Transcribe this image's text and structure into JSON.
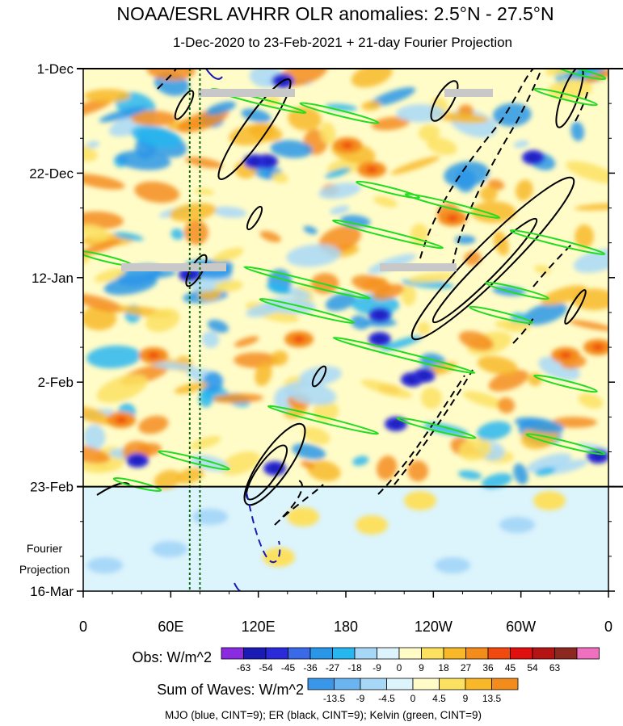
{
  "chart_data": {
    "type": "heatmap",
    "title": "NOAA/ESRL AVHRR OLR anomalies: 2.5°N - 27.5°N",
    "subtitle": "1-Dec-2020 to 23-Feb-2021 + 21-day Fourier Projection",
    "y_ticks": [
      "1-Dec",
      "22-Dec",
      "12-Jan",
      "2-Feb",
      "23-Feb",
      "16-Mar"
    ],
    "y_tick_days": [
      0,
      21,
      42,
      63,
      84,
      105
    ],
    "ylim_days": [
      0,
      105
    ],
    "observed_end_day": 84,
    "x_ticks": [
      "0",
      "60E",
      "120E",
      "180",
      "120W",
      "60W",
      "0"
    ],
    "x_tick_lons": [
      0,
      60,
      120,
      180,
      240,
      300,
      360
    ],
    "xlim_lon": [
      0,
      360
    ],
    "projection_label": [
      "Fourier",
      "Projection"
    ],
    "reference_lons": [
      73,
      80
    ],
    "obs_colorbar": {
      "label": "Obs: W/m^2",
      "ticks": [
        "-63",
        "-54",
        "-45",
        "-36",
        "-27",
        "-18",
        "-9",
        "0",
        "9",
        "18",
        "27",
        "36",
        "45",
        "54",
        "63"
      ],
      "colors": [
        "#8a2be2",
        "#1a1ab4",
        "#2a2ad8",
        "#3a6ae8",
        "#2a96e8",
        "#28b6f0",
        "#a8d8f8",
        "#dcf4fc",
        "#fffcc8",
        "#fce060",
        "#f8b828",
        "#f48c1c",
        "#f04a10",
        "#e01010",
        "#b41414",
        "#8c2820",
        "#f070c0"
      ]
    },
    "waves_colorbar": {
      "label": "Sum of Waves: W/m^2",
      "ticks": [
        "-13.5",
        "-9",
        "-4.5",
        "0",
        "4.5",
        "9",
        "13.5"
      ],
      "colors": [
        "#3a96e8",
        "#6ab4f0",
        "#a8d8f8",
        "#dcf4fc",
        "#fffcc8",
        "#fce060",
        "#f8b828",
        "#f48c1c"
      ]
    },
    "caption": "MJO (blue, CINT=9); ER (black, CINT=9); Kelvin (green, CINT=9)",
    "series": [
      {
        "name": "MJO",
        "color": "#1a1ab4"
      },
      {
        "name": "ER",
        "color": "#000000"
      },
      {
        "name": "Kelvin",
        "color": "#22dd22"
      }
    ]
  }
}
